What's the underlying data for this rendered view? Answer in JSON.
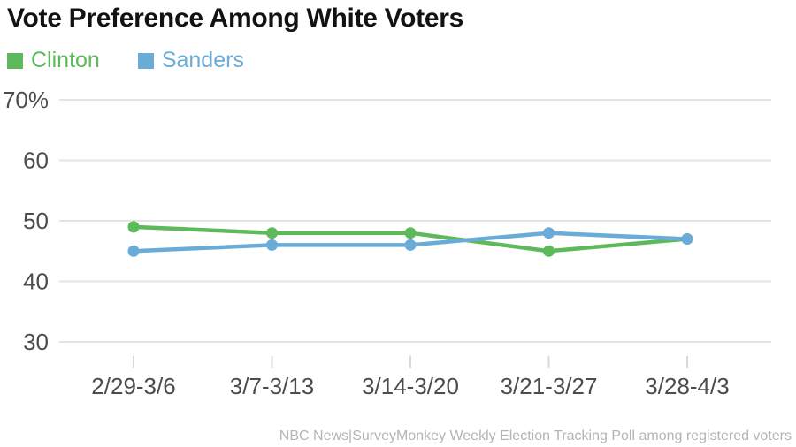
{
  "chart_data": {
    "type": "line",
    "title": "Vote Preference Among White Voters",
    "categories": [
      "2/29-3/6",
      "3/7-3/13",
      "3/14-3/20",
      "3/21-3/27",
      "3/28-4/3"
    ],
    "series": [
      {
        "name": "Clinton",
        "color": "#5dba5b",
        "values": [
          49,
          48,
          48,
          45,
          47
        ]
      },
      {
        "name": "Sanders",
        "color": "#6aacd9",
        "values": [
          45,
          46,
          46,
          48,
          47
        ]
      }
    ],
    "xlabel": "",
    "ylabel": "",
    "ylim": [
      30,
      70
    ],
    "y_ticks": [
      70,
      60,
      50,
      40,
      30
    ],
    "y_tick_labels": [
      "70%",
      "60",
      "50",
      "40",
      "30"
    ],
    "grid": "horizontal",
    "legend_position": "top-left",
    "source": "NBC News|SurveyMonkey Weekly Election Tracking Poll among registered voters"
  },
  "colors": {
    "title_text": "#121212",
    "axis_text": "#4c4c4c",
    "gridline": "#e4e4e4",
    "tick_mark": "#d8d8d8",
    "source_text": "#b4b4b4",
    "background": "#ffffff"
  }
}
